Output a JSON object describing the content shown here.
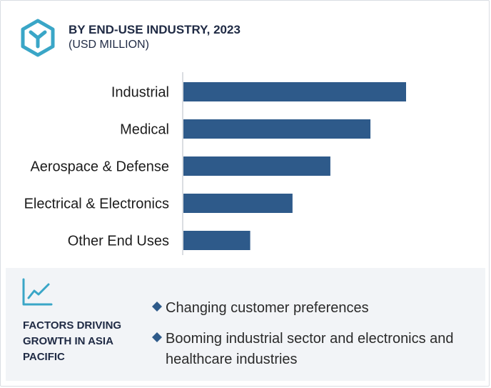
{
  "header": {
    "title": "BY END-USE INDUSTRY, 2023",
    "subtitle": "(USD MILLION)",
    "logo_icon": "hexagon-y-logo-icon",
    "accent_color": "#3aa6c7"
  },
  "chart_data": {
    "type": "bar",
    "orientation": "horizontal",
    "title": "BY END-USE INDUSTRY, 2023",
    "subtitle": "(USD MILLION)",
    "categories": [
      "Industrial",
      "Medical",
      "Aerospace & Defense",
      "Electrical & Electronics",
      "Other End Uses"
    ],
    "values": [
      100,
      84,
      66,
      49,
      30
    ],
    "value_note": "relative bar lengths; no axis values shown",
    "grid": false,
    "bar_color": "#2e5a8a"
  },
  "factors": {
    "icon": "trend-line-chart-icon",
    "heading": "FACTORS DRIVING GROWTH IN ASIA PACIFIC",
    "bullet_icon": "diamond-bullet-icon",
    "bullets": [
      "Changing customer preferences",
      "Booming industrial sector and electronics and healthcare industries"
    ],
    "accent_color": "#2e5a8a"
  }
}
